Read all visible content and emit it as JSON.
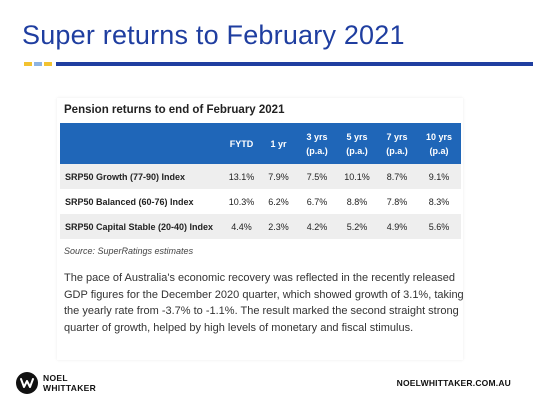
{
  "slide": {
    "title": "Super returns to February 2021"
  },
  "table": {
    "title": "Pension returns to end of February 2021",
    "headers": [
      {
        "line1": "",
        "line2": ""
      },
      {
        "line1": "FYTD",
        "line2": ""
      },
      {
        "line1": "1 yr",
        "line2": ""
      },
      {
        "line1": "3 yrs",
        "line2": "(p.a.)"
      },
      {
        "line1": "5 yrs",
        "line2": "(p.a.)"
      },
      {
        "line1": "7 yrs",
        "line2": "(p.a.)"
      },
      {
        "line1": "10 yrs",
        "line2": "(p.a)"
      }
    ],
    "rows": [
      {
        "label": "SRP50 Growth (77-90) Index",
        "values": [
          "13.1%",
          "7.9%",
          "7.5%",
          "10.1%",
          "8.7%",
          "9.1%"
        ]
      },
      {
        "label": "SRP50 Balanced (60-76) Index",
        "values": [
          "10.3%",
          "6.2%",
          "6.7%",
          "8.8%",
          "7.8%",
          "8.3%"
        ]
      },
      {
        "label": "SRP50 Capital Stable (20-40) Index",
        "values": [
          "4.4%",
          "2.3%",
          "4.2%",
          "5.2%",
          "4.9%",
          "5.6%"
        ]
      }
    ],
    "source": "Source: SuperRatings estimates"
  },
  "body_text": "The pace of Australia's economic recovery was reflected in the recently released GDP figures for the December 2020 quarter, which showed growth of 3.1%, taking the yearly rate from -3.7% to -1.1%. The result marked the second straight strong quarter of growth, helped by high levels of monetary and fiscal stimulus.",
  "footer": {
    "logo_line1": "NOEL",
    "logo_line2": "WHITTAKER",
    "website": "NOELWHITTAKER.COM.AU"
  },
  "colors": {
    "title": "#1f3ea0",
    "table_header": "#1f66b8",
    "accent_yellow": "#f2c230",
    "accent_light_blue": "#8db3e2"
  }
}
